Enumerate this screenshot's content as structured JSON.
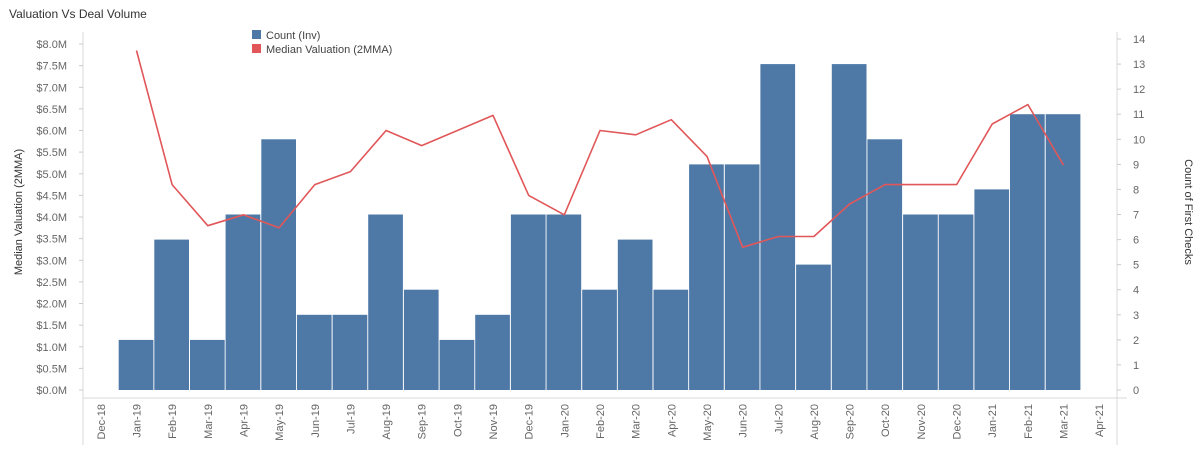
{
  "title": "Valuation Vs Deal Volume",
  "chart_data": {
    "type": "bar",
    "title": "Valuation Vs Deal Volume",
    "categories": [
      "Dec-18",
      "Jan-19",
      "Feb-19",
      "Mar-19",
      "Apr-19",
      "May-19",
      "Jun-19",
      "Jul-19",
      "Aug-19",
      "Sep-19",
      "Oct-19",
      "Nov-19",
      "Dec-19",
      "Jan-20",
      "Feb-20",
      "Mar-20",
      "Apr-20",
      "May-20",
      "Jun-20",
      "Jul-20",
      "Aug-20",
      "Sep-20",
      "Oct-20",
      "Nov-20",
      "Dec-20",
      "Jan-21",
      "Feb-21",
      "Mar-21",
      "Apr-21"
    ],
    "series": [
      {
        "name": "Count (Inv)",
        "type": "bar",
        "axis": "right",
        "color": "#4e79a7",
        "values": [
          null,
          2,
          6,
          2,
          7,
          10,
          3,
          3,
          7,
          4,
          2,
          3,
          7,
          7,
          4,
          6,
          4,
          9,
          9,
          13,
          5,
          13,
          10,
          7,
          7,
          8,
          11,
          11,
          null
        ]
      },
      {
        "name": "Median Valuation (2MMA)",
        "type": "line",
        "axis": "left",
        "color": "#e15759",
        "values": [
          null,
          7.85,
          4.75,
          3.8,
          4.05,
          3.75,
          4.75,
          5.05,
          6.0,
          5.65,
          6.0,
          6.35,
          4.5,
          4.05,
          6.0,
          5.9,
          6.25,
          5.4,
          3.3,
          3.55,
          3.55,
          4.3,
          4.75,
          4.75,
          4.75,
          6.15,
          6.6,
          5.2,
          null
        ]
      }
    ],
    "ylabel_left": "Median Valuation (2MMA)",
    "ylabel_right": "Count of First Checks",
    "ylim_left": [
      0,
      8.0
    ],
    "ylim_right": [
      0,
      14
    ],
    "yticks_left": [
      "$0.0M",
      "$0.5M",
      "$1.0M",
      "$1.5M",
      "$2.0M",
      "$2.5M",
      "$3.0M",
      "$3.5M",
      "$4.0M",
      "$4.5M",
      "$5.0M",
      "$5.5M",
      "$6.0M",
      "$6.5M",
      "$7.0M",
      "$7.5M",
      "$8.0M"
    ],
    "yticks_right": [
      "0",
      "1",
      "2",
      "3",
      "4",
      "5",
      "6",
      "7",
      "8",
      "9",
      "10",
      "11",
      "12",
      "13",
      "14"
    ],
    "legend": "top-left",
    "grid": false
  }
}
